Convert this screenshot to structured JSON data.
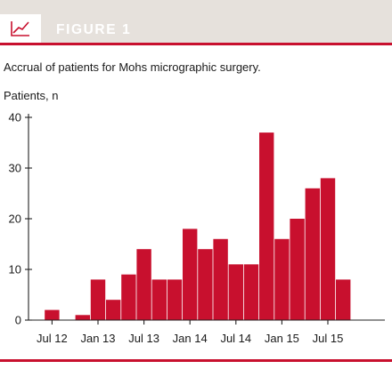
{
  "figure": {
    "label": "FIGURE 1",
    "icon": "line-chart-icon",
    "accent_color": "#c8102e",
    "header_bg": "#e6e1dc"
  },
  "caption": "Accrual of patients for Mohs micrographic surgery.",
  "chart_data": {
    "type": "bar",
    "title": "Accrual of patients for Mohs micrographic surgery.",
    "ylabel": "Patients, n",
    "xlabel": "",
    "ylim": [
      0,
      40
    ],
    "yticks": [
      0,
      10,
      20,
      30,
      40
    ],
    "grid": false,
    "bar_color": "#c8102e",
    "x_tick_labels": [
      {
        "label": "Jul 12",
        "bar_index": 1
      },
      {
        "label": "Jan 13",
        "bar_index": 4
      },
      {
        "label": "Jul 13",
        "bar_index": 7
      },
      {
        "label": "Jan 14",
        "bar_index": 10
      },
      {
        "label": "Jul 14",
        "bar_index": 13
      },
      {
        "label": "Jan 15",
        "bar_index": 16
      },
      {
        "label": "Jul 15",
        "bar_index": 19
      }
    ],
    "values": [
      0,
      2,
      0,
      1,
      8,
      4,
      9,
      14,
      8,
      8,
      18,
      14,
      16,
      11,
      11,
      37,
      16,
      20,
      26,
      28,
      8
    ]
  }
}
